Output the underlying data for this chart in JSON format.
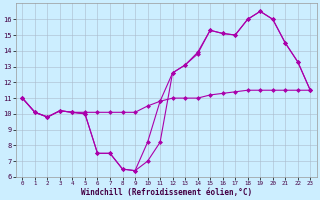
{
  "xlabel": "Windchill (Refroidissement éolien,°C)",
  "bg_color": "#cceeff",
  "grid_color": "#aabbcc",
  "line_color": "#aa00aa",
  "xlim": [
    -0.5,
    23.5
  ],
  "ylim": [
    6,
    17
  ],
  "yticks": [
    6,
    7,
    8,
    9,
    10,
    11,
    12,
    13,
    14,
    15,
    16
  ],
  "xticks": [
    0,
    1,
    2,
    3,
    4,
    5,
    6,
    7,
    8,
    9,
    10,
    11,
    12,
    13,
    14,
    15,
    16,
    17,
    18,
    19,
    20,
    21,
    22,
    23
  ],
  "series1_x": [
    0,
    1,
    2,
    3,
    4,
    5,
    6,
    7,
    8,
    9,
    10,
    11,
    12,
    13,
    14,
    15,
    16,
    17,
    18,
    19,
    20,
    21,
    22,
    23
  ],
  "series1_y": [
    11.0,
    10.1,
    9.8,
    10.2,
    10.1,
    10.0,
    7.5,
    7.5,
    6.5,
    6.4,
    8.2,
    10.8,
    12.6,
    13.1,
    13.8,
    15.3,
    15.1,
    15.0,
    16.0,
    16.5,
    16.0,
    14.5,
    13.3,
    11.5
  ],
  "series2_x": [
    0,
    1,
    2,
    3,
    4,
    5,
    6,
    7,
    8,
    9,
    10,
    11,
    12,
    13,
    14,
    15,
    16,
    17,
    18,
    19,
    20,
    21,
    22,
    23
  ],
  "series2_y": [
    11.0,
    10.1,
    9.8,
    10.2,
    10.1,
    10.0,
    7.5,
    7.5,
    6.5,
    6.4,
    7.0,
    8.2,
    12.6,
    13.1,
    13.9,
    15.3,
    15.1,
    15.0,
    16.0,
    16.5,
    16.0,
    14.5,
    13.3,
    11.5
  ],
  "series3_x": [
    0,
    1,
    2,
    3,
    4,
    5,
    6,
    7,
    8,
    9,
    10,
    11,
    12,
    13,
    14,
    15,
    16,
    17,
    18,
    19,
    20,
    21,
    22,
    23
  ],
  "series3_y": [
    11.0,
    10.1,
    9.8,
    10.2,
    10.1,
    10.1,
    10.1,
    10.1,
    10.1,
    10.1,
    10.5,
    10.8,
    11.0,
    11.0,
    11.0,
    11.2,
    11.3,
    11.4,
    11.5,
    11.5,
    11.5,
    11.5,
    11.5,
    11.5
  ]
}
